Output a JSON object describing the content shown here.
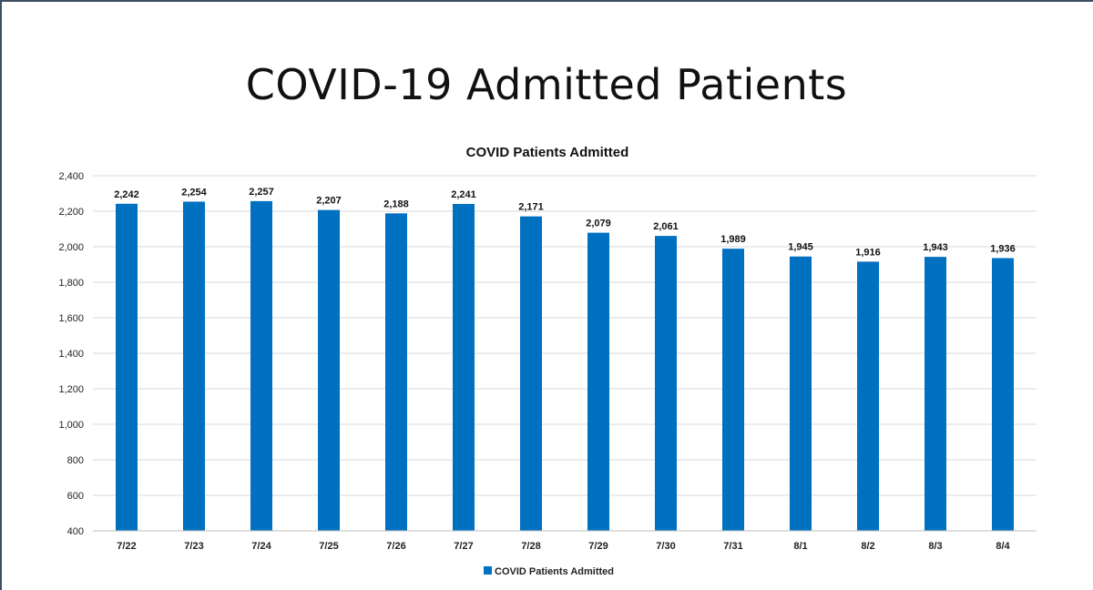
{
  "slide": {
    "title": "COVID-19 Admitted Patients"
  },
  "chart_data": {
    "type": "bar",
    "title": "COVID Patients Admitted",
    "xlabel": "",
    "ylabel": "",
    "categories": [
      "7/22",
      "7/23",
      "7/24",
      "7/25",
      "7/26",
      "7/27",
      "7/28",
      "7/29",
      "7/30",
      "7/31",
      "8/1",
      "8/2",
      "8/3",
      "8/4"
    ],
    "series": [
      {
        "name": "COVID Patients Admitted",
        "values": [
          2242,
          2254,
          2257,
          2207,
          2188,
          2241,
          2171,
          2079,
          2061,
          1989,
          1945,
          1916,
          1943,
          1936
        ],
        "labels": [
          "2,242",
          "2,254",
          "2,257",
          "2,207",
          "2,188",
          "2,241",
          "2,171",
          "2,079",
          "2,061",
          "1,989",
          "1,945",
          "1,916",
          "1,943",
          "1,936"
        ],
        "color": "#0070c0"
      }
    ],
    "ylim": [
      400,
      2400
    ],
    "yticks": [
      400,
      600,
      800,
      1000,
      1200,
      1400,
      1600,
      1800,
      2000,
      2200,
      2400
    ],
    "ytick_labels": [
      "400",
      "600",
      "800",
      "1,000",
      "1,200",
      "1,400",
      "1,600",
      "1,800",
      "2,000",
      "2,200",
      "2,400"
    ],
    "grid": true,
    "gridline_color": "#d9d9d9",
    "legend": {
      "position": "bottom",
      "label": "COVID Patients Admitted"
    }
  }
}
